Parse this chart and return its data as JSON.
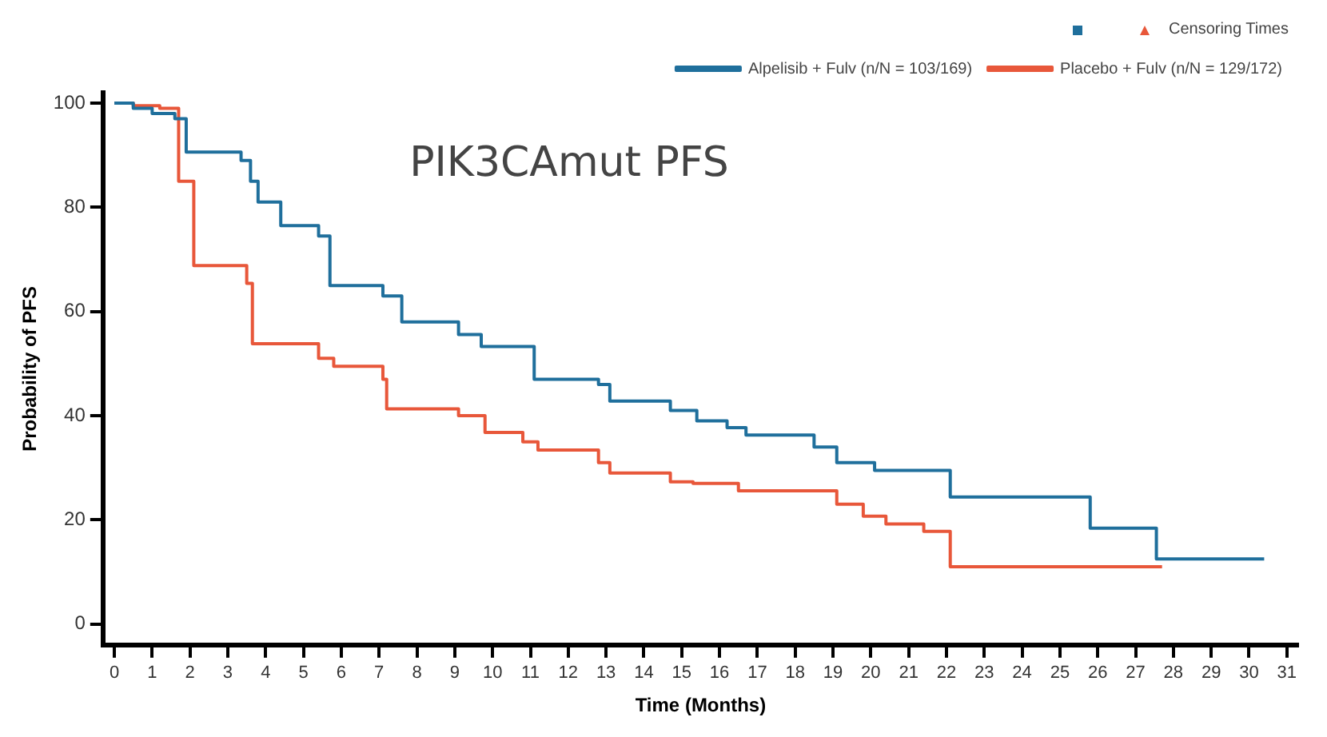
{
  "chart_data": {
    "type": "step",
    "title": "PIK3CAmut PFS",
    "xlabel": "Time (Months)",
    "ylabel": "Probability of PFS",
    "legend_title": "Censoring Times",
    "legend": "top right",
    "grid": false,
    "xlim": [
      -0.3,
      31.3
    ],
    "xticks": [
      0,
      1,
      2,
      3,
      4,
      5,
      6,
      7,
      8,
      9,
      10,
      11,
      12,
      13,
      14,
      15,
      16,
      17,
      18,
      19,
      20,
      21,
      22,
      23,
      24,
      25,
      26,
      27,
      28,
      29,
      30,
      31
    ],
    "ylim": [
      -4,
      102
    ],
    "yticks": [
      0,
      20,
      40,
      60,
      80,
      100
    ],
    "series": [
      {
        "name": "Alpelisib + Fulv (n/N = 103/169)",
        "color": "#1f6f9c",
        "x": [
          0,
          0.5,
          1,
          1.6,
          1.9,
          3.35,
          3.6,
          3.8,
          4.4,
          5.4,
          5.7,
          7.1,
          7.6,
          9.1,
          9.7,
          11.1,
          12.8,
          13.1,
          14.7,
          15.4,
          16.2,
          16.7,
          18.5,
          19.1,
          20.1,
          22.1,
          25.8,
          27.55,
          30.4
        ],
        "values": [
          100,
          99,
          98,
          97,
          90.6,
          89,
          85,
          81,
          76.5,
          74.5,
          65,
          63,
          58,
          55.6,
          53.3,
          47,
          46,
          42.8,
          41,
          39,
          37.7,
          36.3,
          34,
          31,
          29.5,
          24.4,
          18.4,
          12.5,
          12.5
        ]
      },
      {
        "name": "Placebo + Fulv (n/N = 129/172)",
        "color": "#e8573a",
        "x": [
          0,
          0.5,
          1.2,
          1.7,
          2.1,
          3.5,
          3.65,
          5.4,
          5.8,
          7.1,
          7.2,
          9.1,
          9.8,
          10.8,
          11.2,
          12.8,
          13.1,
          14.7,
          15.3,
          16.5,
          19.1,
          19.8,
          20.4,
          21.4,
          22.1,
          27.7
        ],
        "values": [
          100,
          99.5,
          99,
          85,
          68.8,
          65.4,
          53.8,
          51,
          49.5,
          47,
          41.3,
          40,
          36.8,
          35,
          33.4,
          31,
          29,
          27.3,
          27,
          25.6,
          23,
          20.7,
          19.2,
          17.8,
          11,
          11
        ]
      }
    ]
  }
}
